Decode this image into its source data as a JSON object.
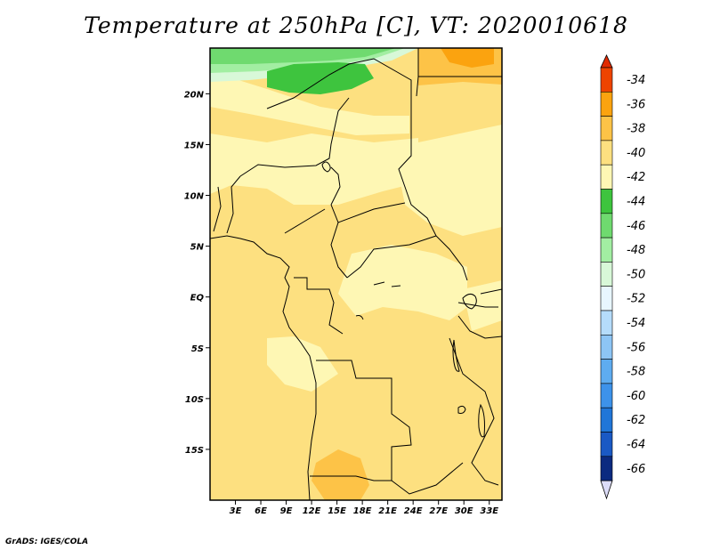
{
  "title": "Temperature at 250hPa [C], VT: 2020010618",
  "credit": "GrADS: IGES/COLA",
  "map": {
    "lon_range": [
      0,
      34.5
    ],
    "lat_range": [
      -20,
      24.5
    ],
    "lon_ticks": [
      {
        "value": 3,
        "label": "3E"
      },
      {
        "value": 6,
        "label": "6E"
      },
      {
        "value": 9,
        "label": "9E"
      },
      {
        "value": 12,
        "label": "12E"
      },
      {
        "value": 15,
        "label": "15E"
      },
      {
        "value": 18,
        "label": "18E"
      },
      {
        "value": 21,
        "label": "21E"
      },
      {
        "value": 24,
        "label": "24E"
      },
      {
        "value": 27,
        "label": "27E"
      },
      {
        "value": 30,
        "label": "30E"
      },
      {
        "value": 33,
        "label": "33E"
      }
    ],
    "lat_ticks": [
      {
        "value": 20,
        "label": "20N"
      },
      {
        "value": 15,
        "label": "15N"
      },
      {
        "value": 10,
        "label": "10N"
      },
      {
        "value": 5,
        "label": "5N"
      },
      {
        "value": 0,
        "label": "EQ"
      },
      {
        "value": -5,
        "label": "5S"
      },
      {
        "value": -10,
        "label": "10S"
      },
      {
        "value": -15,
        "label": "15S"
      }
    ],
    "base_color": "#fde080"
  },
  "colorbar": {
    "levels": [
      {
        "label": "-34",
        "color": "#ee4400"
      },
      {
        "label": "-36",
        "color": "#f97b00"
      },
      {
        "label": "-38",
        "color": "#fba30f"
      },
      {
        "label": "-40",
        "color": "#fdc347"
      },
      {
        "label": "-42",
        "color": "#fde080"
      },
      {
        "label": "-44",
        "color": "#fef7b4"
      },
      {
        "label": "-46",
        "color": "#3ec43e"
      },
      {
        "label": "-48",
        "color": "#6fda6f"
      },
      {
        "label": "-50",
        "color": "#a2eea2"
      },
      {
        "label": "-52",
        "color": "#d8f8d8"
      },
      {
        "label": "-54",
        "color": "#e8f6ff"
      },
      {
        "label": "-56",
        "color": "#b5dcfb"
      },
      {
        "label": "-58",
        "color": "#8dc5f5"
      },
      {
        "label": "-60",
        "color": "#5eacf0"
      },
      {
        "label": "-62",
        "color": "#3d92ea"
      },
      {
        "label": "-64",
        "color": "#2076d8"
      },
      {
        "label": "-66",
        "color": "#1a59c4"
      }
    ],
    "bottom_color": "#0b2a80",
    "under_color": "#dcdcf8",
    "over_color": "#e02a00"
  }
}
